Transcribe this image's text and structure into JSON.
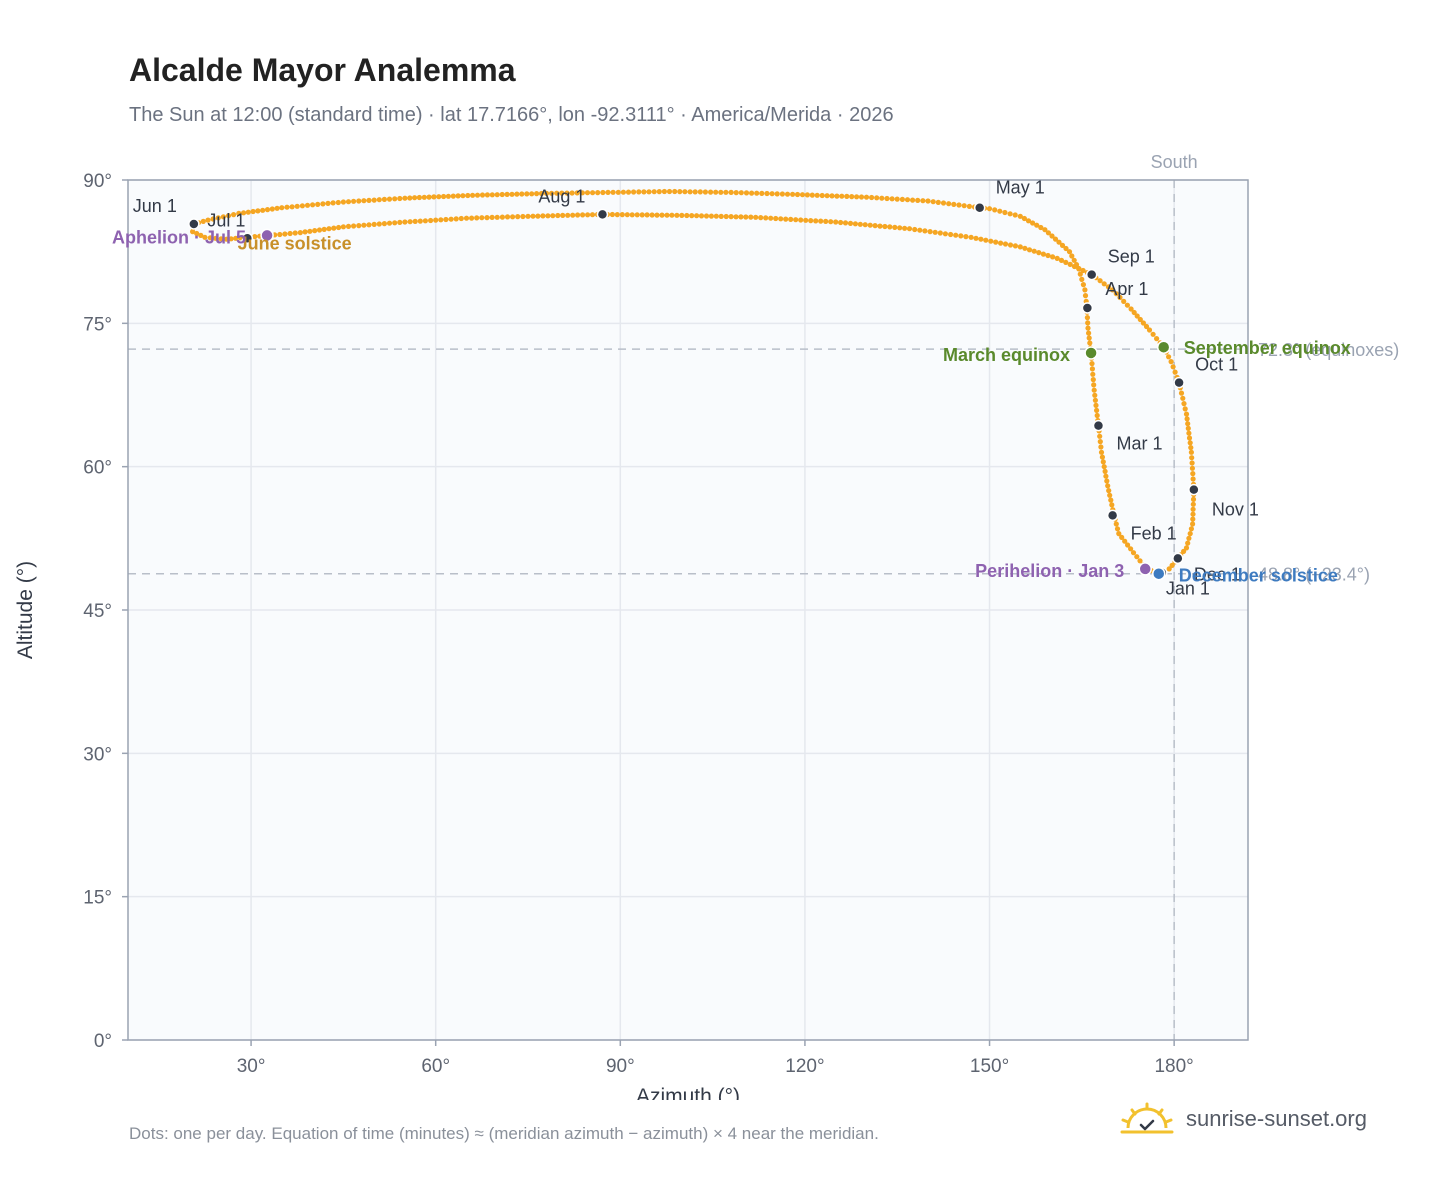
{
  "title": "Alcalde Mayor Analemma",
  "subtitle": "The Sun at 12:00 (standard time) · lat 17.7166°, lon -92.3111° · America/Merida · 2026",
  "footnote": "Dots: one per day. Equation of time (minutes) ≈ (meridian azimuth − azimuth) × 4 near the meridian.",
  "brand": {
    "name": "sunrise-sunset.org",
    "logo_icon": "sun-logo-icon"
  },
  "colors": {
    "plot_bg": "#f9fbfd",
    "grid": "#e5e8ee",
    "frame": "#9aa3b2",
    "curve": "#f5a623",
    "month_marker": "#333a47",
    "equinox": "#5a8a2c",
    "solstice_june": "#c8902a",
    "solstice_december": "#3e7bc0",
    "apsis": "#8e62b0",
    "refline": "#b9bfc9",
    "axis_text": "#5e6470"
  },
  "chart_data": {
    "type": "scatter",
    "title": "Alcalde Mayor Analemma",
    "xlabel": "Azimuth (°)",
    "ylabel": "Altitude (°)",
    "xlim": [
      10,
      192
    ],
    "ylim": [
      0,
      90
    ],
    "xticks": [
      30,
      60,
      90,
      120,
      150,
      180
    ],
    "xtick_labels": [
      "30°",
      "60°",
      "90°",
      "120°",
      "150°",
      "180°"
    ],
    "yticks": [
      0,
      15,
      30,
      45,
      60,
      75,
      90
    ],
    "ytick_labels": [
      "0°",
      "15°",
      "30°",
      "45°",
      "60°",
      "75°",
      "90°"
    ],
    "grid": true,
    "south_line": {
      "x": 180,
      "label": "South"
    },
    "reference_lines": [
      {
        "y": 72.3,
        "label": "72.3° (equinoxes)"
      },
      {
        "y": 48.8,
        "label": "48.8° (−23.4°)"
      }
    ],
    "analemma_path": [
      {
        "x": 177.8,
        "y": 48.8
      },
      {
        "x": 175.5,
        "y": 49.3
      },
      {
        "x": 173.4,
        "y": 51.0
      },
      {
        "x": 171.0,
        "y": 53.0
      },
      {
        "x": 170.2,
        "y": 55.0
      },
      {
        "x": 169.2,
        "y": 58.0
      },
      {
        "x": 168.2,
        "y": 61.5
      },
      {
        "x": 167.7,
        "y": 64.3
      },
      {
        "x": 167.0,
        "y": 68.0
      },
      {
        "x": 166.5,
        "y": 71.9
      },
      {
        "x": 166.0,
        "y": 74.5
      },
      {
        "x": 165.8,
        "y": 76.7
      },
      {
        "x": 165.5,
        "y": 78.5
      },
      {
        "x": 164.5,
        "y": 80.7
      },
      {
        "x": 163.0,
        "y": 82.5
      },
      {
        "x": 159.0,
        "y": 84.8
      },
      {
        "x": 155.0,
        "y": 86.2
      },
      {
        "x": 150.0,
        "y": 87.0
      },
      {
        "x": 148.4,
        "y": 87.1
      },
      {
        "x": 140.0,
        "y": 87.8
      },
      {
        "x": 130.0,
        "y": 88.2
      },
      {
        "x": 118.0,
        "y": 88.5
      },
      {
        "x": 108.0,
        "y": 88.7
      },
      {
        "x": 98.0,
        "y": 88.8
      },
      {
        "x": 88.0,
        "y": 88.7
      },
      {
        "x": 78.0,
        "y": 88.6
      },
      {
        "x": 66.0,
        "y": 88.4
      },
      {
        "x": 55.0,
        "y": 88.1
      },
      {
        "x": 45.0,
        "y": 87.7
      },
      {
        "x": 35.0,
        "y": 87.1
      },
      {
        "x": 28.0,
        "y": 86.5
      },
      {
        "x": 23.0,
        "y": 85.8
      },
      {
        "x": 20.7,
        "y": 85.4
      },
      {
        "x": 20.5,
        "y": 84.6
      },
      {
        "x": 22.5,
        "y": 84.0
      },
      {
        "x": 26.0,
        "y": 83.8
      },
      {
        "x": 29.0,
        "y": 84.0
      },
      {
        "x": 33.0,
        "y": 84.2
      },
      {
        "x": 38.0,
        "y": 84.5
      },
      {
        "x": 45.0,
        "y": 85.1
      },
      {
        "x": 55.0,
        "y": 85.6
      },
      {
        "x": 65.0,
        "y": 86.0
      },
      {
        "x": 75.0,
        "y": 86.2
      },
      {
        "x": 87.1,
        "y": 86.4
      },
      {
        "x": 100.0,
        "y": 86.3
      },
      {
        "x": 112.0,
        "y": 86.1
      },
      {
        "x": 125.0,
        "y": 85.6
      },
      {
        "x": 137.0,
        "y": 84.9
      },
      {
        "x": 147.0,
        "y": 84.0
      },
      {
        "x": 155.0,
        "y": 83.0
      },
      {
        "x": 161.0,
        "y": 81.8
      },
      {
        "x": 166.6,
        "y": 80.1
      },
      {
        "x": 170.0,
        "y": 78.5
      },
      {
        "x": 173.0,
        "y": 76.5
      },
      {
        "x": 176.0,
        "y": 74.3
      },
      {
        "x": 178.3,
        "y": 72.5
      },
      {
        "x": 179.5,
        "y": 71.0
      },
      {
        "x": 180.8,
        "y": 68.8
      },
      {
        "x": 182.0,
        "y": 65.5
      },
      {
        "x": 182.8,
        "y": 61.5
      },
      {
        "x": 183.2,
        "y": 57.6
      },
      {
        "x": 183.0,
        "y": 54.0
      },
      {
        "x": 182.0,
        "y": 51.5
      },
      {
        "x": 180.6,
        "y": 50.4
      },
      {
        "x": 179.2,
        "y": 49.3
      },
      {
        "x": 177.8,
        "y": 48.8
      }
    ],
    "month_points": [
      {
        "label": "Jan 1",
        "x": 178.0,
        "y": 48.9
      },
      {
        "label": "Feb 1",
        "x": 170.0,
        "y": 54.9
      },
      {
        "label": "Mar 1",
        "x": 167.7,
        "y": 64.3
      },
      {
        "label": "Apr 1",
        "x": 165.9,
        "y": 76.6
      },
      {
        "label": "May 1",
        "x": 148.4,
        "y": 87.1
      },
      {
        "label": "Jun 1",
        "x": 20.7,
        "y": 85.4
      },
      {
        "label": "Jul 1",
        "x": 29.4,
        "y": 83.9
      },
      {
        "label": "Aug 1",
        "x": 87.1,
        "y": 86.4
      },
      {
        "label": "Sep 1",
        "x": 166.6,
        "y": 80.1
      },
      {
        "label": "Oct 1",
        "x": 180.8,
        "y": 68.8
      },
      {
        "label": "Nov 1",
        "x": 183.2,
        "y": 57.6
      },
      {
        "label": "Dec 1",
        "x": 180.6,
        "y": 50.4
      }
    ],
    "events": [
      {
        "label": "March equinox",
        "x": 166.5,
        "y": 71.9,
        "kind": "equinox"
      },
      {
        "label": "September equinox",
        "x": 178.3,
        "y": 72.5,
        "kind": "equinox"
      },
      {
        "label": "June solstice",
        "x": 27.0,
        "y": 84.0,
        "kind": "solstice_june"
      },
      {
        "label": "December solstice",
        "x": 177.5,
        "y": 48.8,
        "kind": "solstice_december"
      },
      {
        "label": "Aphelion · Jul 5",
        "x": 32.6,
        "y": 84.2,
        "kind": "apsis"
      },
      {
        "label": "Perihelion · Jan 3",
        "x": 175.3,
        "y": 49.3,
        "kind": "apsis"
      }
    ]
  }
}
